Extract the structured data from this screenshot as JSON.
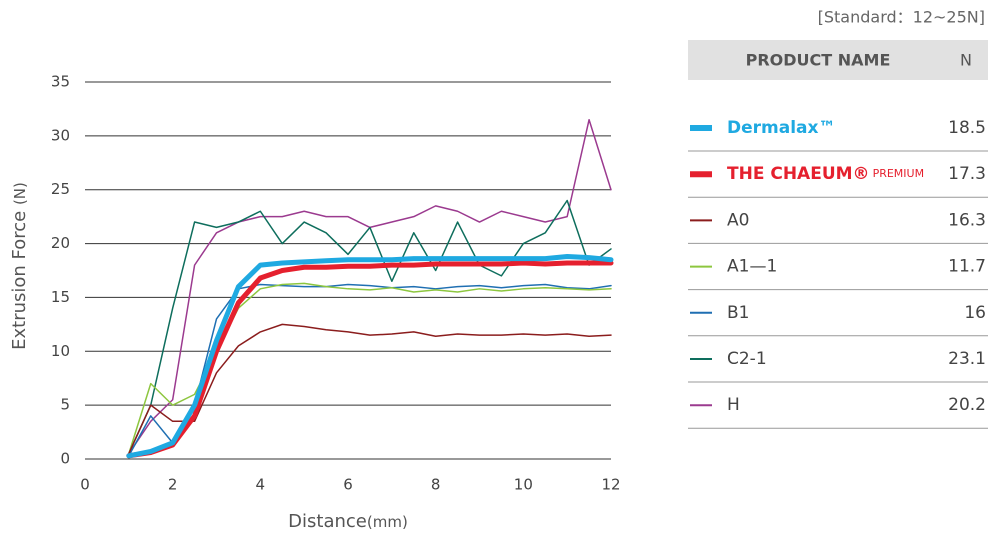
{
  "chart_data": {
    "type": "line",
    "xlabel": "Distance",
    "xlabel_unit": "(mm)",
    "ylabel": "Extrusion Force",
    "ylabel_unit": "(N)",
    "standard": "[Standard：12~25N]",
    "table_header": [
      "PRODUCT NAME",
      "N"
    ],
    "x": [
      1,
      1.5,
      2,
      2.5,
      3,
      3.5,
      4,
      4.5,
      5,
      5.5,
      6,
      6.5,
      7,
      7.5,
      8,
      8.5,
      9,
      9.5,
      10,
      10.5,
      11,
      11.5,
      12
    ],
    "xlim": [
      0,
      12
    ],
    "xticks": [
      0,
      2,
      4,
      6,
      8,
      10,
      12
    ],
    "ylim": [
      0,
      35
    ],
    "yticks": [
      0,
      5,
      10,
      15,
      20,
      25,
      30,
      35
    ],
    "grid": true,
    "series": [
      {
        "name": "Dermalax™",
        "color": "#1fa9e1",
        "line_width": 5,
        "n": 18.5,
        "values": [
          0.3,
          0.7,
          1.5,
          5,
          11,
          16,
          18,
          18.2,
          18.3,
          18.4,
          18.5,
          18.5,
          18.5,
          18.6,
          18.6,
          18.6,
          18.6,
          18.6,
          18.6,
          18.6,
          18.8,
          18.7,
          18.5
        ]
      },
      {
        "name": "THE CHAEUM®",
        "name_suffix": "PREMIUM",
        "color": "#e5202e",
        "line_width": 5,
        "n": 17.3,
        "values": [
          0.3,
          0.6,
          1.3,
          4,
          10,
          14.5,
          16.8,
          17.5,
          17.8,
          17.8,
          17.9,
          17.9,
          18,
          18,
          18.1,
          18.1,
          18.1,
          18.1,
          18.2,
          18.1,
          18.2,
          18.2,
          18.2
        ]
      },
      {
        "name": "A0",
        "color": "#8b1d1d",
        "line_width": 1.5,
        "n": 16.3,
        "values": [
          0.5,
          5,
          3.5,
          3.5,
          8,
          10.5,
          11.8,
          12.5,
          12.3,
          12,
          11.8,
          11.5,
          11.6,
          11.8,
          11.4,
          11.6,
          11.5,
          11.5,
          11.6,
          11.5,
          11.6,
          11.4,
          11.5
        ]
      },
      {
        "name": "A1—1",
        "color": "#8dc63f",
        "line_width": 1.5,
        "n": 11.7,
        "values": [
          0.5,
          7,
          5,
          6,
          10,
          14,
          15.8,
          16.2,
          16.3,
          16,
          15.8,
          15.7,
          15.9,
          15.5,
          15.7,
          15.5,
          15.8,
          15.6,
          15.8,
          15.9,
          15.8,
          15.7,
          15.8
        ]
      },
      {
        "name": "B1",
        "color": "#1f6fb2",
        "line_width": 1.5,
        "n": 16.0,
        "values": [
          0.3,
          4,
          1.5,
          5,
          13,
          15.8,
          16.2,
          16.1,
          16,
          16,
          16.2,
          16.1,
          15.9,
          16,
          15.8,
          16,
          16.1,
          15.9,
          16.1,
          16.2,
          15.9,
          15.8,
          16.1
        ]
      },
      {
        "name": "C2-1",
        "color": "#0e6e5d",
        "line_width": 1.5,
        "n": 23.1,
        "values": [
          0.5,
          5,
          14,
          22,
          21.5,
          22,
          23,
          20,
          22,
          21,
          19,
          21.5,
          16.5,
          21,
          17.5,
          22,
          18,
          17,
          20,
          21,
          24,
          18,
          19.5
        ]
      },
      {
        "name": "H",
        "color": "#9b3a8f",
        "line_width": 1.5,
        "n": 20.2,
        "values": [
          0.5,
          3.5,
          5.5,
          18,
          21,
          22,
          22.5,
          22.5,
          23,
          22.5,
          22.5,
          21.5,
          22,
          22.5,
          23.5,
          23,
          22,
          23,
          22.5,
          22,
          22.5,
          31.5,
          25
        ]
      }
    ]
  }
}
